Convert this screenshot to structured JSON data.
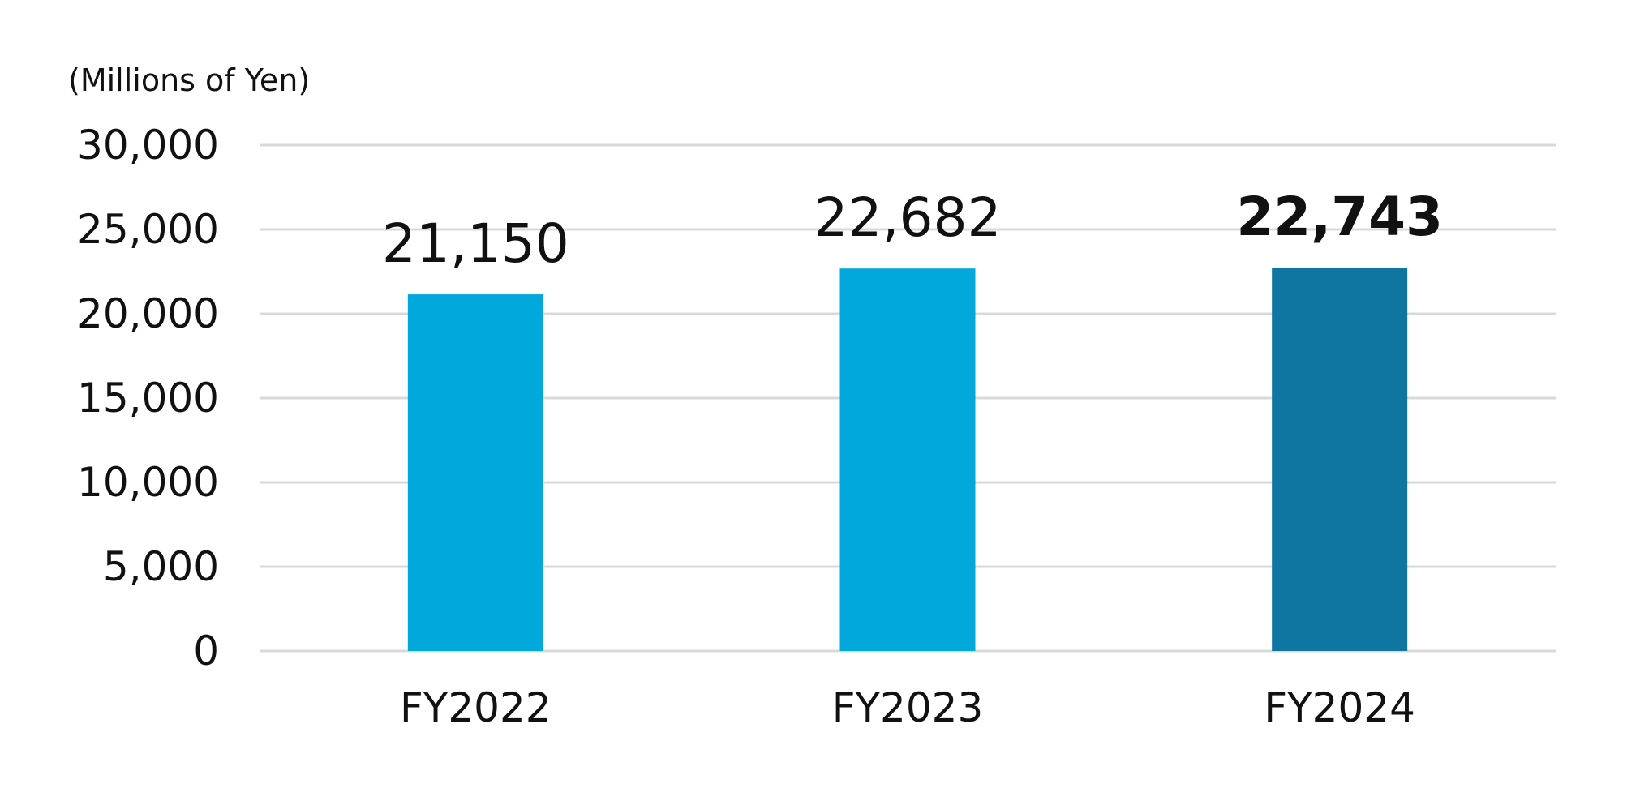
{
  "chart_data": {
    "type": "bar",
    "unit_label": "(Millions of Yen)",
    "categories": [
      "FY2022",
      "FY2023",
      "FY2024"
    ],
    "values": [
      21150,
      22682,
      22743
    ],
    "value_labels": [
      "21,150",
      "22,682",
      "22,743"
    ],
    "bar_colors": [
      "#00a8dc",
      "#00a8dc",
      "#0e76a0"
    ],
    "highlight_index": 2,
    "ylim": [
      0,
      30000
    ],
    "yticks": [
      0,
      5000,
      10000,
      15000,
      20000,
      25000,
      30000
    ],
    "ytick_labels": [
      "0",
      "5,000",
      "10,000",
      "15,000",
      "20,000",
      "25,000",
      "30,000"
    ],
    "grid": true,
    "title": "",
    "xlabel": "",
    "ylabel": ""
  }
}
